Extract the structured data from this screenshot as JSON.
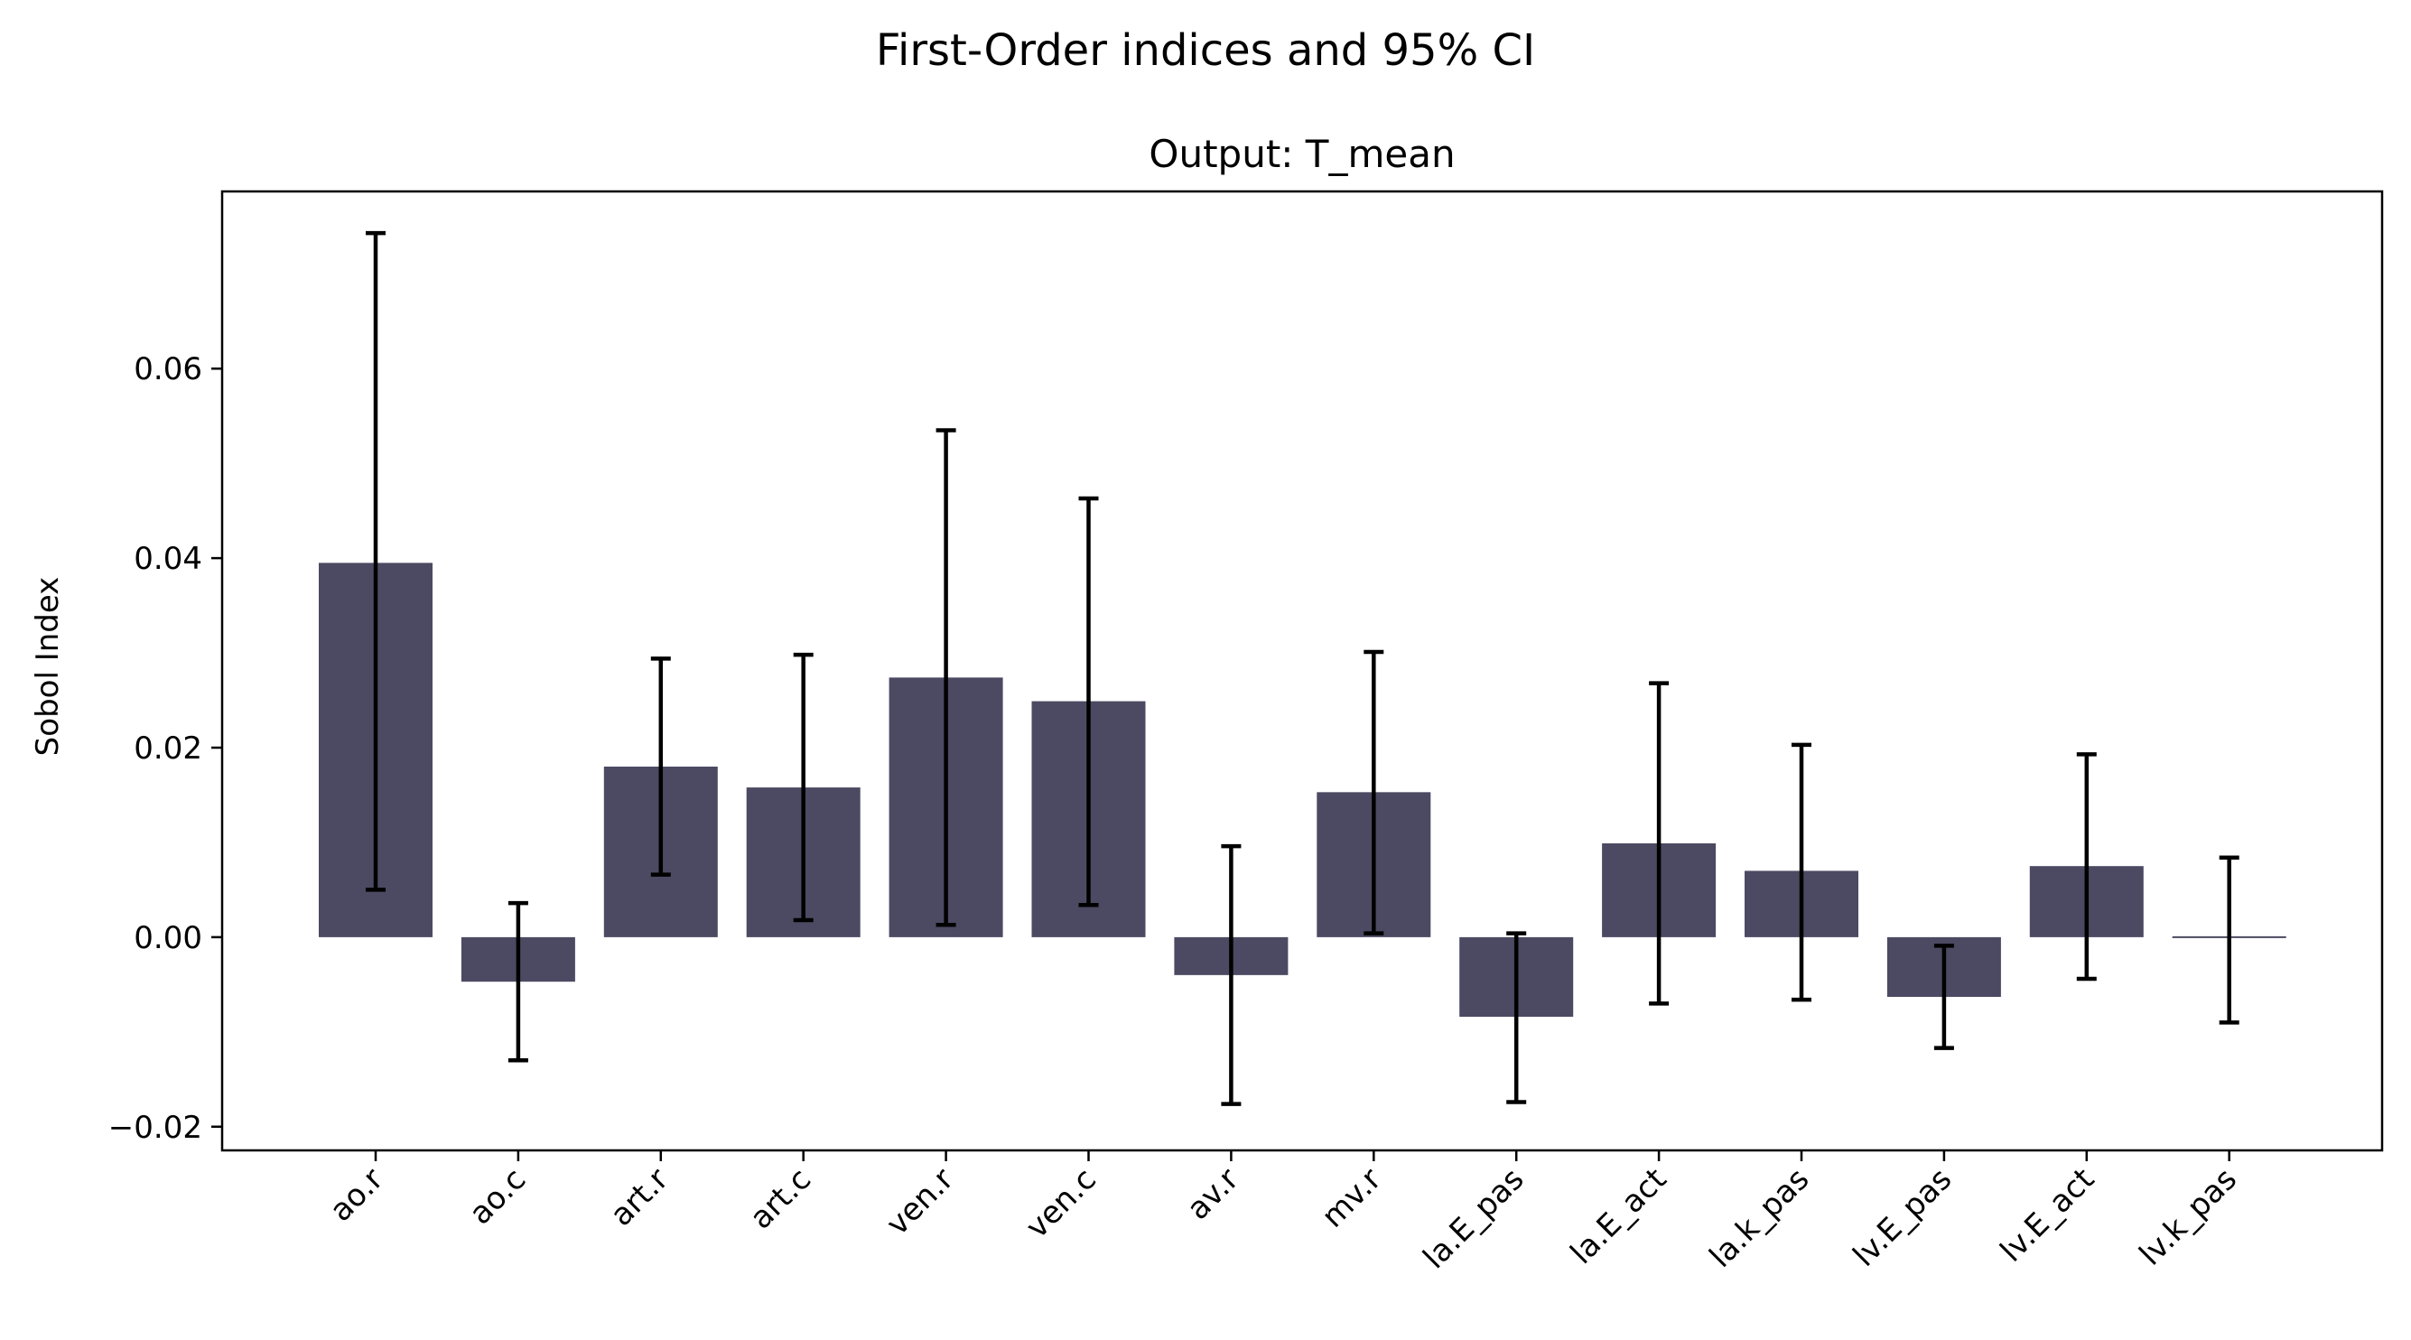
{
  "chart_data": {
    "type": "bar",
    "title": "First-Order indices and 95% CI",
    "subtitle": "Output: T_mean",
    "xlabel": "",
    "ylabel": "Sobol Index",
    "ylim": [
      -0.0225,
      0.0787
    ],
    "yticks": [
      -0.02,
      0.0,
      0.02,
      0.04,
      0.06
    ],
    "ytick_labels": [
      "−0.02",
      "0.00",
      "0.02",
      "0.04",
      "0.06"
    ],
    "categories": [
      "ao.r",
      "ao.c",
      "art.r",
      "art.c",
      "ven.r",
      "ven.c",
      "av.r",
      "mv.r",
      "la.E_pas",
      "la.E_act",
      "la.k_pas",
      "lv.E_pas",
      "lv.E_act",
      "lv.k_pas"
    ],
    "values": [
      0.0395,
      -0.0047,
      0.018,
      0.0158,
      0.0274,
      0.0249,
      -0.004,
      0.0153,
      -0.0084,
      0.0099,
      0.007,
      -0.0063,
      0.0075,
      0.0
    ],
    "ci_lower": [
      0.005,
      -0.013,
      0.0066,
      0.0018,
      0.0013,
      0.0034,
      -0.0176,
      0.0004,
      -0.0174,
      -0.007,
      -0.0066,
      -0.0117,
      -0.0044,
      -0.009
    ],
    "ci_upper": [
      0.0743,
      0.0036,
      0.0294,
      0.0298,
      0.0535,
      0.0463,
      0.0096,
      0.0301,
      0.0004,
      0.0268,
      0.0203,
      -0.0009,
      0.0193,
      0.0084
    ],
    "bar_color": "#4b4a62",
    "error_color": "#000000",
    "grid": false,
    "legend": "none"
  }
}
